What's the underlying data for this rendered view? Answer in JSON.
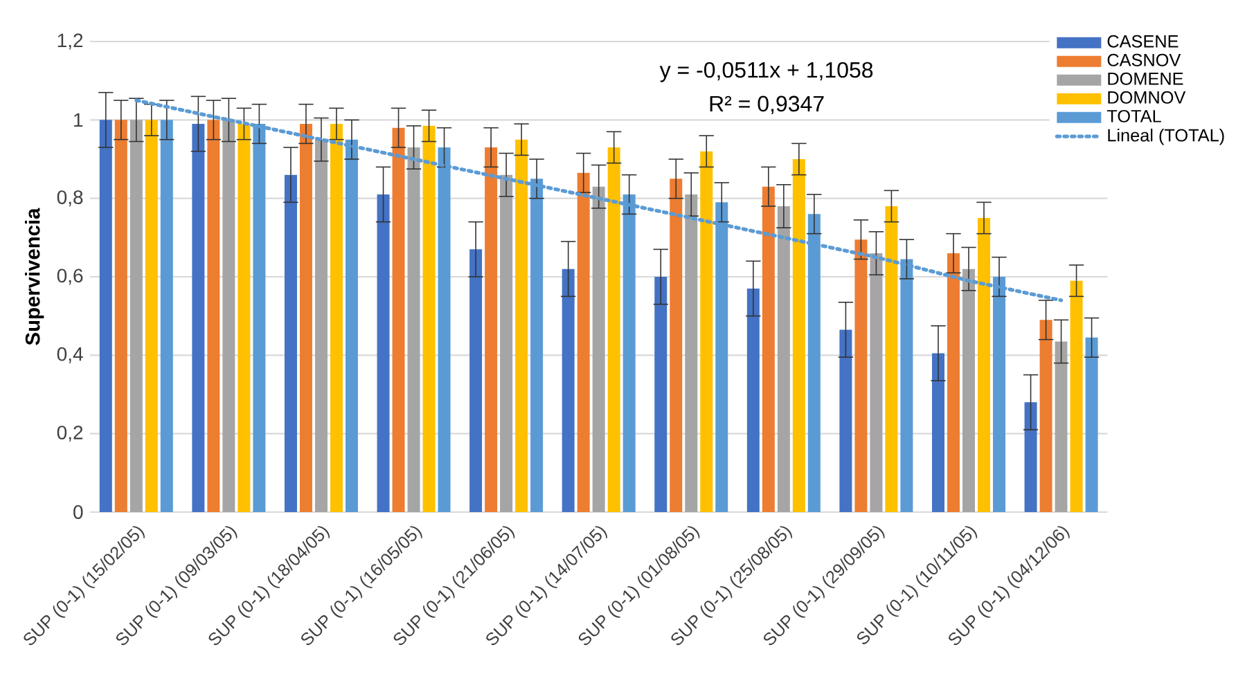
{
  "chart_data": {
    "type": "bar",
    "ylabel": "Supervivencia",
    "categories": [
      "SUP (0-1) (15/02/05)",
      "SUP (0-1) (09/03/05)",
      "SUP (0-1) (18/04/05)",
      "SUP (0-1) (16/05/05)",
      "SUP (0-1) (21/06/05)",
      "SUP (0-1) (14/07/05)",
      "SUP (0-1) (01/08/05)",
      "SUP (0-1) (25/08/05)",
      "SUP (0-1) (29/09/05)",
      "SUP (0-1) (10/11/05)",
      "SUP (0-1) (04/12/06)"
    ],
    "series": [
      {
        "name": "CASENE",
        "color": "#4472c4",
        "values": [
          1.0,
          0.99,
          0.86,
          0.81,
          0.67,
          0.62,
          0.6,
          0.57,
          0.465,
          0.405,
          0.28
        ],
        "errors": [
          0.07,
          0.07,
          0.07,
          0.07,
          0.07,
          0.07,
          0.07,
          0.07,
          0.07,
          0.07,
          0.07
        ]
      },
      {
        "name": "CASNOV",
        "color": "#ed7d31",
        "values": [
          1.0,
          1.0,
          0.99,
          0.98,
          0.93,
          0.865,
          0.85,
          0.83,
          0.695,
          0.66,
          0.49
        ],
        "errors": [
          0.05,
          0.05,
          0.05,
          0.05,
          0.05,
          0.05,
          0.05,
          0.05,
          0.05,
          0.05,
          0.05
        ]
      },
      {
        "name": "DOMENE",
        "color": "#a5a5a5",
        "values": [
          1.0,
          1.0,
          0.95,
          0.93,
          0.86,
          0.83,
          0.81,
          0.78,
          0.66,
          0.62,
          0.435
        ],
        "errors": [
          0.055,
          0.055,
          0.055,
          0.055,
          0.055,
          0.055,
          0.055,
          0.055,
          0.055,
          0.055,
          0.055
        ]
      },
      {
        "name": "DOMNOV",
        "color": "#ffc000",
        "values": [
          1.0,
          0.99,
          0.99,
          0.985,
          0.95,
          0.93,
          0.92,
          0.9,
          0.78,
          0.75,
          0.59
        ],
        "errors": [
          0.04,
          0.04,
          0.04,
          0.04,
          0.04,
          0.04,
          0.04,
          0.04,
          0.04,
          0.04,
          0.04
        ]
      },
      {
        "name": "TOTAL",
        "color": "#5b9bd5",
        "values": [
          1.0,
          0.99,
          0.95,
          0.93,
          0.85,
          0.81,
          0.79,
          0.76,
          0.645,
          0.6,
          0.445
        ],
        "errors": [
          0.05,
          0.05,
          0.05,
          0.05,
          0.05,
          0.05,
          0.05,
          0.05,
          0.05,
          0.05,
          0.05
        ]
      },
      {
        "name": "Lineal (TOTAL)",
        "type": "line",
        "line_style": "dotted",
        "color": "#5b9bd5",
        "values": [
          1.05,
          1.0,
          0.95,
          0.9,
          0.85,
          0.8,
          0.75,
          0.7,
          0.65,
          0.59,
          0.54
        ]
      }
    ],
    "ylim": [
      0,
      1.2
    ],
    "yticks": [
      0,
      {
        "value": 0.2,
        "label": "0,2"
      },
      {
        "value": 0.4,
        "label": "0,4"
      },
      {
        "value": 0.6,
        "label": "0,6"
      },
      {
        "value": 0.8,
        "label": "0,8"
      },
      1,
      {
        "value": 1.2,
        "label": "1,2"
      }
    ],
    "grid": "y",
    "legend": "top right",
    "marker": "none",
    "annotations": [
      "y = -0,0511x + 1,1058",
      "R² = 0,9347"
    ]
  }
}
